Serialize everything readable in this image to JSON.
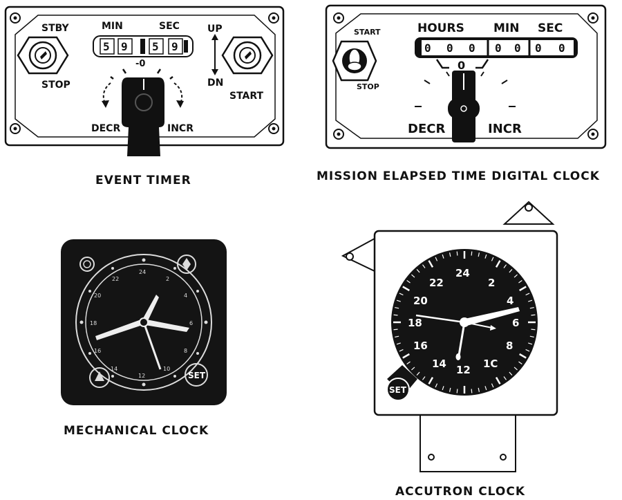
{
  "event_timer": {
    "caption": "EVENT TIMER",
    "stby": "STBY",
    "stop": "STOP",
    "min": "MIN",
    "sec": "SEC",
    "up": "UP",
    "dn": "DN",
    "start": "START",
    "decr": "DECR",
    "incr": "INCR",
    "zero": "-0",
    "digits": [
      "5",
      "9",
      "5",
      "9"
    ]
  },
  "met_clock": {
    "caption": "MISSION ELAPSED TIME DIGITAL CLOCK",
    "start": "START",
    "stop": "STOP",
    "hours": "HOURS",
    "min": "MIN",
    "sec": "SEC",
    "zero": "0",
    "decr": "DECR",
    "incr": "INCR",
    "digits": [
      "0",
      "0",
      "0",
      "0",
      "0",
      "0",
      "0"
    ]
  },
  "mechanical_clock": {
    "caption": "MECHANICAL CLOCK",
    "set": "SET"
  },
  "accutron_clock": {
    "caption": "ACCUTRON CLOCK",
    "set": "SET",
    "numbers": [
      "24",
      "2",
      "4",
      "6",
      "8",
      "1C",
      "12",
      "14",
      "16",
      "18",
      "20",
      "22"
    ]
  },
  "colors": {
    "ink": "#111111",
    "panel": "#ffffff",
    "dial": "#141414"
  }
}
